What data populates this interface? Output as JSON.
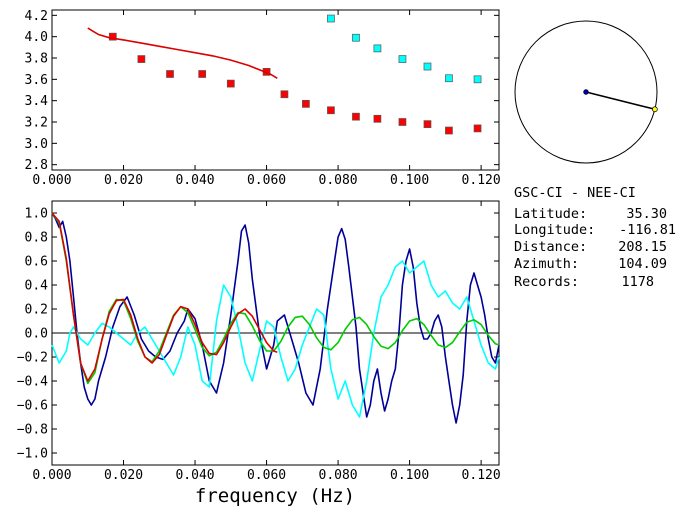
{
  "info": {
    "title": "GSC-CI - NEE-CI",
    "rows": [
      {
        "label": "Latitude:",
        "value": "35.30"
      },
      {
        "label": "Longitude:",
        "value": "-116.81"
      },
      {
        "label": "Distance:",
        "value": "208.15"
      },
      {
        "label": "Azimuth:",
        "value": "104.09"
      },
      {
        "label": "Records:",
        "value": "1178"
      }
    ]
  },
  "chart_data": [
    {
      "type": "scatter",
      "xlabel": "",
      "ylabel": "",
      "xlim": [
        0.0,
        0.125
      ],
      "ylim": [
        2.75,
        4.25
      ],
      "xticks": [
        "0.000",
        "0.020",
        "0.040",
        "0.060",
        "0.080",
        "0.100",
        "0.120"
      ],
      "yticks": [
        "2.8",
        "3.0",
        "3.2",
        "3.4",
        "3.6",
        "3.8",
        "4.0",
        "4.2"
      ],
      "series": [
        {
          "color": "#ff0000",
          "kind": "squares",
          "x": [
            0.017,
            0.025,
            0.033,
            0.042,
            0.05,
            0.06,
            0.065,
            0.071,
            0.078,
            0.085,
            0.091,
            0.098,
            0.105,
            0.111,
            0.119
          ],
          "y": [
            4.0,
            3.79,
            3.65,
            3.65,
            3.56,
            3.67,
            3.46,
            3.37,
            3.31,
            3.25,
            3.23,
            3.2,
            3.18,
            3.12,
            3.14
          ]
        },
        {
          "color": "#00ffff",
          "kind": "squares",
          "x": [
            0.078,
            0.085,
            0.091,
            0.098,
            0.105,
            0.111,
            0.119
          ],
          "y": [
            4.17,
            3.99,
            3.89,
            3.79,
            3.72,
            3.61,
            3.6
          ]
        },
        {
          "color": "#dd0000",
          "kind": "line",
          "x": [
            0.01,
            0.013,
            0.016,
            0.02,
            0.025,
            0.03,
            0.035,
            0.04,
            0.045,
            0.05,
            0.055,
            0.058,
            0.061,
            0.063
          ],
          "y": [
            4.08,
            4.02,
            3.99,
            3.97,
            3.94,
            3.91,
            3.88,
            3.85,
            3.82,
            3.78,
            3.73,
            3.69,
            3.65,
            3.61
          ]
        }
      ]
    },
    {
      "type": "line",
      "xlabel": "frequency (Hz)",
      "ylabel": "",
      "xlim": [
        0.0,
        0.125
      ],
      "ylim": [
        -1.1,
        1.1
      ],
      "xticks": [
        "0.000",
        "0.020",
        "0.040",
        "0.060",
        "0.080",
        "0.100",
        "0.120"
      ],
      "yticks": [
        "-1.0",
        "-0.8",
        "-0.6",
        "-0.4",
        "-0.2",
        "0.0",
        "0.2",
        "0.4",
        "0.6",
        "0.8",
        "1.0"
      ],
      "zero_line": true,
      "series": [
        {
          "color": "#000099",
          "x": [
            0.0,
            0.001,
            0.002,
            0.003,
            0.004,
            0.005,
            0.006,
            0.007,
            0.008,
            0.009,
            0.01,
            0.011,
            0.012,
            0.013,
            0.015,
            0.017,
            0.019,
            0.021,
            0.023,
            0.025,
            0.027,
            0.029,
            0.031,
            0.033,
            0.035,
            0.037,
            0.038,
            0.04,
            0.042,
            0.044,
            0.046,
            0.048,
            0.05,
            0.052,
            0.053,
            0.054,
            0.055,
            0.056,
            0.058,
            0.06,
            0.062,
            0.063,
            0.065,
            0.067,
            0.069,
            0.071,
            0.073,
            0.075,
            0.077,
            0.079,
            0.08,
            0.081,
            0.082,
            0.083,
            0.085,
            0.086,
            0.087,
            0.088,
            0.089,
            0.09,
            0.091,
            0.092,
            0.093,
            0.094,
            0.095,
            0.096,
            0.097,
            0.098,
            0.099,
            0.1,
            0.101,
            0.102,
            0.103,
            0.104,
            0.105,
            0.106,
            0.107,
            0.108,
            0.109,
            0.11,
            0.111,
            0.112,
            0.113,
            0.114,
            0.115,
            0.116,
            0.117,
            0.118,
            0.119,
            0.12,
            0.121,
            0.122,
            0.123,
            0.124,
            0.125
          ],
          "y": [
            1.0,
            0.95,
            0.88,
            0.93,
            0.8,
            0.6,
            0.3,
            0.0,
            -0.25,
            -0.45,
            -0.55,
            -0.6,
            -0.55,
            -0.4,
            -0.2,
            0.05,
            0.22,
            0.3,
            0.15,
            -0.05,
            -0.15,
            -0.2,
            -0.22,
            -0.15,
            0.0,
            0.1,
            0.2,
            0.12,
            -0.1,
            -0.4,
            -0.5,
            -0.25,
            0.15,
            0.6,
            0.85,
            0.9,
            0.75,
            0.45,
            0.0,
            -0.3,
            -0.1,
            0.1,
            0.15,
            -0.05,
            -0.25,
            -0.5,
            -0.6,
            -0.3,
            0.2,
            0.6,
            0.8,
            0.87,
            0.78,
            0.55,
            0.05,
            -0.3,
            -0.5,
            -0.7,
            -0.6,
            -0.4,
            -0.3,
            -0.5,
            -0.65,
            -0.55,
            -0.4,
            -0.3,
            0.0,
            0.4,
            0.6,
            0.7,
            0.55,
            0.25,
            0.05,
            -0.05,
            -0.05,
            0.0,
            0.1,
            0.15,
            0.05,
            -0.2,
            -0.4,
            -0.6,
            -0.75,
            -0.6,
            -0.35,
            0.1,
            0.4,
            0.5,
            0.4,
            0.3,
            0.15,
            -0.05,
            -0.2,
            -0.25,
            -0.1
          ]
        },
        {
          "color": "#00ffff",
          "x": [
            0.0,
            0.002,
            0.004,
            0.005,
            0.006,
            0.008,
            0.01,
            0.012,
            0.014,
            0.016,
            0.018,
            0.02,
            0.022,
            0.024,
            0.026,
            0.028,
            0.03,
            0.032,
            0.034,
            0.036,
            0.038,
            0.04,
            0.042,
            0.044,
            0.046,
            0.048,
            0.05,
            0.052,
            0.054,
            0.056,
            0.058,
            0.06,
            0.062,
            0.064,
            0.066,
            0.068,
            0.07,
            0.072,
            0.074,
            0.076,
            0.078,
            0.08,
            0.082,
            0.084,
            0.086,
            0.088,
            0.09,
            0.092,
            0.094,
            0.096,
            0.098,
            0.1,
            0.102,
            0.104,
            0.106,
            0.108,
            0.11,
            0.112,
            0.114,
            0.116,
            0.118,
            0.12,
            0.122,
            0.124,
            0.125
          ],
          "y": [
            -0.1,
            -0.25,
            -0.15,
            0.0,
            0.05,
            -0.05,
            -0.1,
            0.0,
            0.08,
            0.05,
            0.0,
            -0.05,
            -0.1,
            0.0,
            0.05,
            -0.05,
            -0.15,
            -0.25,
            -0.35,
            -0.2,
            0.05,
            -0.1,
            -0.4,
            -0.45,
            0.1,
            0.4,
            0.3,
            0.05,
            -0.25,
            -0.4,
            -0.15,
            0.1,
            0.05,
            -0.2,
            -0.4,
            -0.3,
            -0.1,
            0.05,
            0.2,
            0.15,
            -0.3,
            -0.55,
            -0.4,
            -0.6,
            -0.7,
            -0.4,
            0.0,
            0.3,
            0.4,
            0.55,
            0.6,
            0.5,
            0.55,
            0.6,
            0.4,
            0.3,
            0.35,
            0.25,
            0.2,
            0.3,
            0.1,
            -0.1,
            -0.25,
            -0.3,
            -0.2
          ]
        },
        {
          "color": "#00cc00",
          "x": [
            0.0,
            0.002,
            0.004,
            0.006,
            0.008,
            0.01,
            0.012,
            0.014,
            0.016,
            0.018,
            0.02,
            0.022,
            0.024,
            0.026,
            0.028,
            0.03,
            0.032,
            0.034,
            0.036,
            0.038,
            0.04,
            0.042,
            0.044,
            0.046,
            0.048,
            0.05,
            0.052,
            0.054,
            0.056,
            0.058,
            0.06,
            0.062,
            0.064,
            0.066,
            0.068,
            0.07,
            0.072,
            0.074,
            0.076,
            0.078,
            0.08,
            0.082,
            0.084,
            0.086,
            0.088,
            0.09,
            0.092,
            0.094,
            0.096,
            0.098,
            0.1,
            0.102,
            0.104,
            0.106,
            0.108,
            0.11,
            0.112,
            0.114,
            0.116,
            0.118,
            0.12,
            0.122,
            0.124,
            0.125
          ],
          "y": [
            1.0,
            0.92,
            0.6,
            0.15,
            -0.25,
            -0.42,
            -0.33,
            -0.05,
            0.18,
            0.28,
            0.27,
            0.12,
            -0.07,
            -0.2,
            -0.24,
            -0.15,
            0.0,
            0.15,
            0.22,
            0.17,
            0.03,
            -0.12,
            -0.19,
            -0.16,
            -0.05,
            0.08,
            0.17,
            0.16,
            0.06,
            -0.06,
            -0.15,
            -0.15,
            -0.07,
            0.05,
            0.13,
            0.14,
            0.07,
            -0.04,
            -0.12,
            -0.14,
            -0.08,
            0.03,
            0.11,
            0.13,
            0.07,
            -0.03,
            -0.11,
            -0.13,
            -0.08,
            0.02,
            0.1,
            0.12,
            0.07,
            -0.02,
            -0.1,
            -0.12,
            -0.08,
            0.01,
            0.09,
            0.11,
            0.07,
            -0.02,
            -0.09,
            -0.1
          ]
        },
        {
          "color": "#dd0000",
          "x": [
            0.0,
            0.002,
            0.004,
            0.006,
            0.008,
            0.01,
            0.012,
            0.014,
            0.016,
            0.018,
            0.02,
            0.022,
            0.024,
            0.026,
            0.028,
            0.03,
            0.032,
            0.034,
            0.036,
            0.038,
            0.04,
            0.042,
            0.044,
            0.046,
            0.048,
            0.05,
            0.052,
            0.054,
            0.056,
            0.058,
            0.06,
            0.062,
            0.063
          ],
          "y": [
            1.0,
            0.93,
            0.62,
            0.15,
            -0.25,
            -0.4,
            -0.3,
            -0.05,
            0.16,
            0.27,
            0.28,
            0.15,
            -0.05,
            -0.2,
            -0.25,
            -0.18,
            -0.02,
            0.14,
            0.22,
            0.2,
            0.07,
            -0.08,
            -0.17,
            -0.18,
            -0.08,
            0.05,
            0.16,
            0.2,
            0.14,
            0.03,
            -0.08,
            -0.15,
            -0.16
          ]
        }
      ]
    },
    {
      "type": "polar-indicator",
      "azimuth_deg": 104.09,
      "needle_color": "#000000",
      "tip_color": "#ffff00",
      "center_color": "#000099"
    }
  ]
}
